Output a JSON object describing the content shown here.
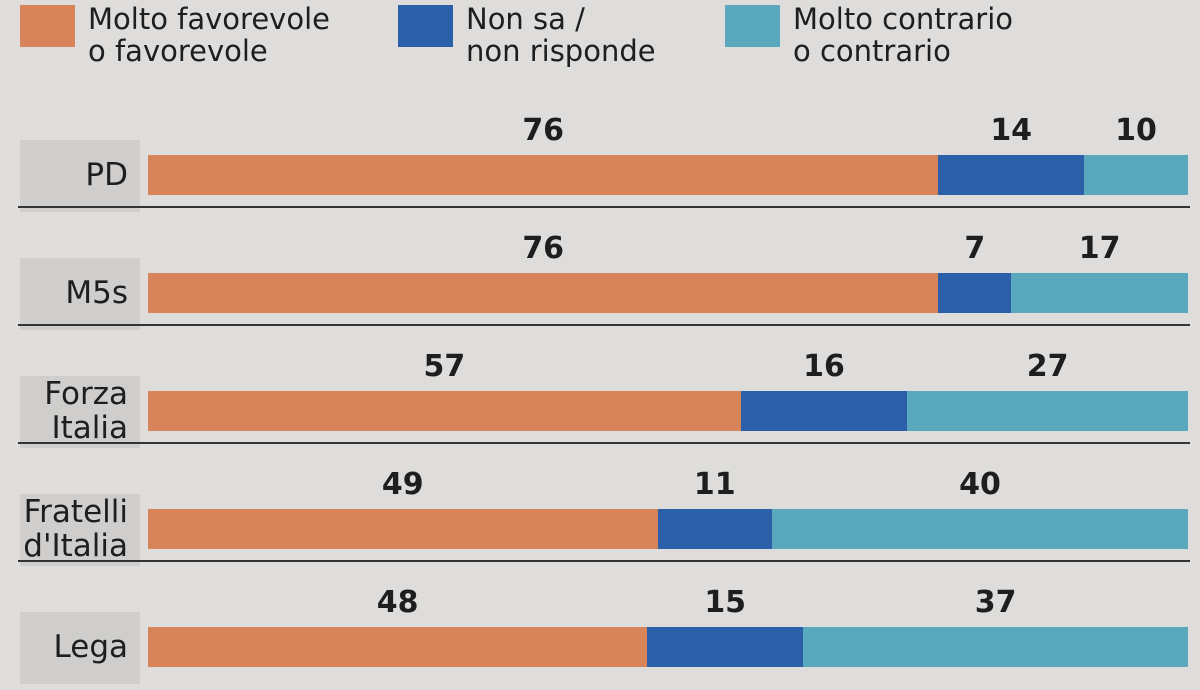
{
  "chart_data": {
    "type": "stacked-bar-horizontal",
    "categories": [
      "PD",
      "M5s",
      "Forza\nItalia",
      "Fratelli\nd'Italia",
      "Lega"
    ],
    "series": [
      {
        "name": "Molto favorevole\no favorevole",
        "color": "#d8845a",
        "values": [
          76,
          76,
          57,
          49,
          48
        ]
      },
      {
        "name": "Non sa /\nnon risponde",
        "color": "#2b5fa8",
        "values": [
          14,
          7,
          16,
          11,
          15
        ]
      },
      {
        "name": "Molto contrario\no contrario",
        "color": "#5aa8be",
        "values": [
          10,
          17,
          27,
          40,
          37
        ]
      }
    ],
    "xlim": [
      0,
      100
    ]
  }
}
